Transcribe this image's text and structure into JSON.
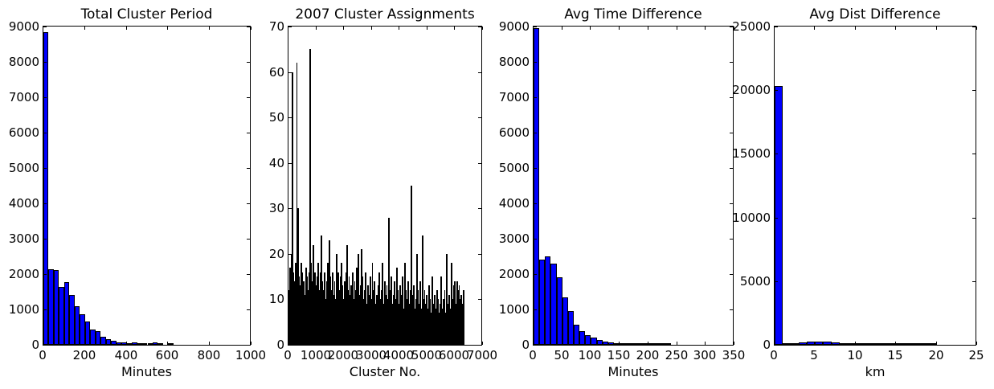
{
  "figure": {
    "background_color": "#ffffff",
    "axes_edge_color": "#000000",
    "bar_fill_blue": "#0000ff",
    "bar_fill_black": "#000000",
    "text_color": "#000000"
  },
  "chart_data": [
    {
      "type": "bar",
      "subtype": "histogram",
      "title": "Total Cluster Period",
      "xlabel": "Minutes",
      "ylabel": "",
      "bar_color": "#0000ff",
      "bar_edge_color": "#000000",
      "xlim": [
        0,
        1000
      ],
      "ylim": [
        0,
        9000
      ],
      "xticks": [
        0,
        200,
        400,
        600,
        800,
        1000
      ],
      "yticks": [
        0,
        1000,
        2000,
        3000,
        4000,
        5000,
        6000,
        7000,
        8000,
        9000
      ],
      "grid": false,
      "legend": null,
      "bin_start": 0,
      "bin_width": 25,
      "values": [
        8850,
        2140,
        2110,
        1640,
        1780,
        1410,
        1100,
        870,
        660,
        440,
        380,
        230,
        150,
        110,
        75,
        60,
        45,
        70,
        40,
        30,
        35,
        60,
        30,
        0,
        25
      ]
    },
    {
      "type": "bar",
      "subtype": "histogram",
      "title": "2007 Cluster Assignments",
      "xlabel": "Cluster No.",
      "ylabel": "",
      "bar_color": "#000000",
      "bar_edge_color": "#000000",
      "xlim": [
        0,
        7000
      ],
      "ylim": [
        0,
        70
      ],
      "xticks": [
        0,
        1000,
        2000,
        3000,
        4000,
        5000,
        6000,
        7000
      ],
      "yticks": [
        0,
        10,
        20,
        30,
        40,
        50,
        60,
        70
      ],
      "grid": false,
      "legend": null,
      "bin_start": 0,
      "bin_width": 40,
      "values": [
        12,
        17,
        20,
        60,
        16,
        14,
        18,
        62,
        30,
        15,
        13,
        18,
        16,
        14,
        11,
        17,
        15,
        12,
        16,
        65,
        18,
        14,
        22,
        16,
        13,
        15,
        18,
        12,
        16,
        24,
        14,
        12,
        16,
        10,
        14,
        18,
        23,
        15,
        12,
        16,
        11,
        14,
        10,
        20,
        16,
        12,
        15,
        18,
        13,
        10,
        14,
        16,
        22,
        12,
        15,
        11,
        13,
        16,
        10,
        14,
        12,
        17,
        20,
        11,
        13,
        21,
        15,
        10,
        12,
        16,
        9,
        13,
        11,
        15,
        10,
        18,
        12,
        14,
        9,
        11,
        13,
        16,
        10,
        12,
        18,
        9,
        14,
        11,
        13,
        10,
        28,
        12,
        15,
        9,
        11,
        14,
        10,
        17,
        12,
        9,
        13,
        11,
        15,
        8,
        18,
        12,
        10,
        14,
        9,
        12,
        35,
        11,
        13,
        8,
        10,
        20,
        12,
        9,
        14,
        8,
        24,
        10,
        12,
        9,
        11,
        8,
        13,
        10,
        7,
        15,
        9,
        11,
        8,
        12,
        10,
        7,
        9,
        15,
        8,
        10,
        12,
        7,
        20,
        9,
        11,
        8,
        18,
        10,
        13,
        14,
        9,
        14,
        12,
        13,
        10,
        11,
        9,
        12
      ]
    },
    {
      "type": "bar",
      "subtype": "histogram",
      "title": "Avg Time Difference",
      "xlabel": "Minutes",
      "ylabel": "",
      "bar_color": "#0000ff",
      "bar_edge_color": "#000000",
      "xlim": [
        0,
        350
      ],
      "ylim": [
        0,
        9000
      ],
      "xticks": [
        0,
        50,
        100,
        150,
        200,
        250,
        300,
        350
      ],
      "yticks": [
        0,
        1000,
        2000,
        3000,
        4000,
        5000,
        6000,
        7000,
        8000,
        9000
      ],
      "grid": false,
      "legend": null,
      "bin_start": 0,
      "bin_width": 10,
      "values": [
        8950,
        2400,
        2500,
        2300,
        1900,
        1350,
        950,
        560,
        380,
        280,
        200,
        130,
        90,
        60,
        45,
        25,
        18,
        10,
        8,
        15,
        15,
        15,
        12,
        10
      ]
    },
    {
      "type": "bar",
      "subtype": "histogram",
      "title": "Avg Dist Difference",
      "xlabel": "km",
      "ylabel": "",
      "bar_color": "#0000ff",
      "bar_edge_color": "#000000",
      "xlim": [
        0,
        25
      ],
      "ylim": [
        0,
        25000
      ],
      "xticks": [
        0,
        5,
        10,
        15,
        20,
        25
      ],
      "yticks": [
        0,
        5000,
        10000,
        15000,
        20000,
        25000
      ],
      "grid": false,
      "legend": null,
      "bin_start": 0,
      "bin_width": 1,
      "values": [
        20300,
        25,
        90,
        170,
        280,
        230,
        280,
        170,
        90,
        80,
        25,
        20,
        20,
        15,
        5,
        5,
        5,
        60,
        60,
        10,
        0,
        0,
        0,
        0,
        0
      ]
    }
  ]
}
